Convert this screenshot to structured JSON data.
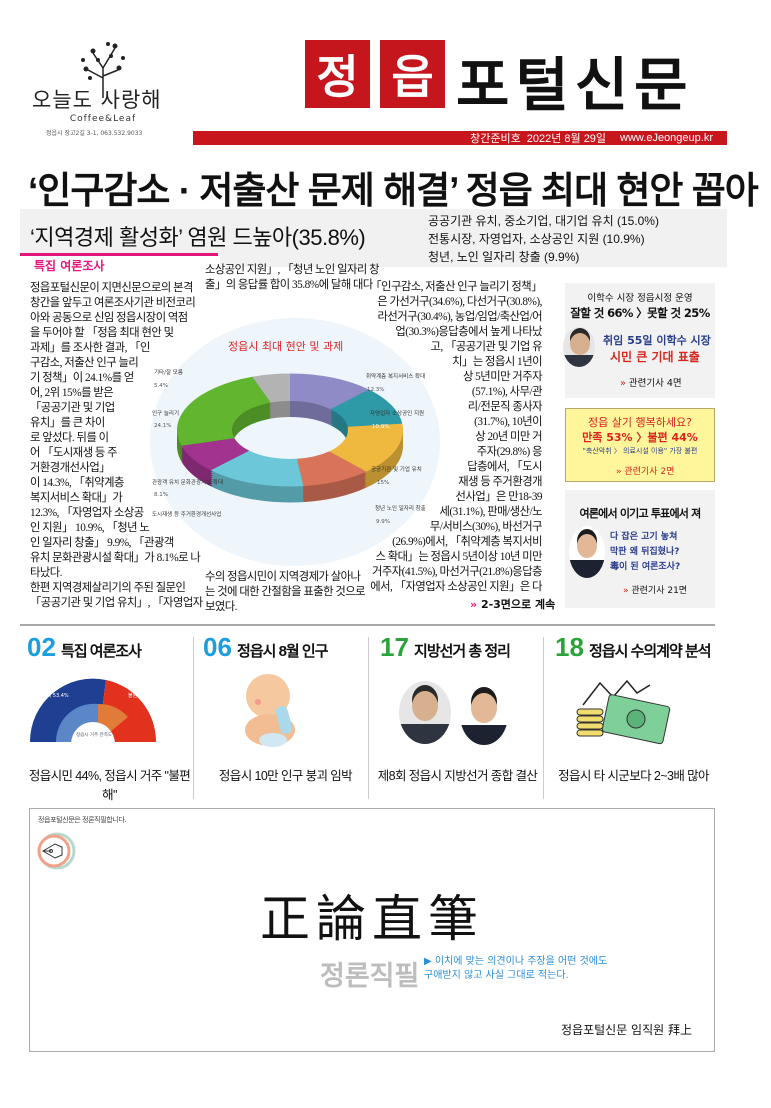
{
  "logo": {
    "name": "오늘도 사랑해",
    "sub": "Coffee&Leaf",
    "address": "정읍시 장고2길 3-1,  063.532.9033"
  },
  "masthead": {
    "red_chars": [
      "정",
      "읍"
    ],
    "title": "포털신문",
    "issue": "창간준비호",
    "date": "2022년 8월 29일",
    "url": "www.eJeongeup.kr"
  },
  "headline": "‘인구감소 · 저출산 문제 해결’ 정읍 최대 현안 꼽아",
  "subheadline": "‘지역경제 활성화’ 염원 드높아(35.8%)",
  "sub_points": [
    "공공기관 유치,  중소기업, 대기업 유치 (15.0%)",
    "전통시장, 자영업자, 소상공인 지원 (10.9%)",
    "청년, 노인 일자리 창출 (9.9%)"
  ],
  "section_label": "특집 여론조사",
  "article": {
    "col1": [
      "정읍포털신문이 지면신문으로의 본격",
      "창간을 앞두고 여론조사기관 비전코리",
      "아와 공동으로 신임 정읍시장이 역점",
      "을 두어야 할 「정읍 최대 현안 및",
      "과제」를 조사한 결과, 「인",
      "구감소, 저출산 인구 늘리",
      "기 정책」이 24.1%를 얻",
      "어, 2위 15%를 받은",
      "「공공기관 및 기업",
      "유치」를  큰 차이",
      "로 앞섰다. 뒤를 이",
      "어 「도시재생 등 주",
      "거환경개선사업」",
      "이 14.3%, 「취약계층",
      "복지서비스 확대」가",
      "12.3%, 「자영업자 소상공",
      "인 지원」 10.9%, 「청년 노",
      "인 일자리 창출」 9.9%, 「관광객",
      "유치 문화관광시설 확대」가 8.1%로 나",
      "타났다.",
      " 한편 지역경제살리기의 주된 질문인",
      "「공공기관 및 기업 유치」, 「자영업자"
    ],
    "col2_top": [
      "소상공인 지원」, 「청년 노인 일자리 창",
      "출」의 응답률 합이 35.8%에 달해 대다"
    ],
    "col2_bottom": [
      "수의 정읍시민이  지역경제가 살아나",
      "는 것에 대한 간절함을 표출한 것으로",
      "보였다."
    ],
    "col3": [
      "「인구감소, 저출산 인구 늘리기 정책」",
      "은 가선거구(34.6%), 다선거구(30.8%),",
      "라선거구(30.4%), 농업/임업/축산업/어",
      "업(30.3%)응답층에서 높게 나타났",
      "고, 「공공기관 및 기업 유",
      "치」는 정읍시 1년이",
      "상 5년미만 거주자",
      "(57.1%), 사무/관",
      "리/전문직 종사자",
      "(31.7%), 10년이",
      "상 20년 미만 거",
      "주자(29.8%) 응",
      "답층에서, 「도시",
      "재생 등 주거환경개",
      "선사업」은 만18-39",
      "세(31.1%), 판매/생산/노",
      "무/서비스(30%), 바선거구",
      "(26.9%)에서, 「취약계층 복지서비",
      "스 확대」는 정읍시 5년이상 10년 미만",
      "거주자(41.5%), 마선거구(21.8%)응답층",
      "에서, 「자영업자 소상공인 지원」은 다"
    ],
    "continue": "2-3면으로 계속"
  },
  "chart_data": {
    "type": "pie",
    "title": "정읍시 최대 현안 및 과제",
    "slices": [
      {
        "label": "취약계층 복지서비스 확대",
        "value": 12.3,
        "value_label": "12.3%",
        "color": "#8e8bc6"
      },
      {
        "label": "자영업자 소상공인 지원",
        "value": 10.9,
        "value_label": "10.9%",
        "color": "#2e9aa8"
      },
      {
        "label": "공공기관 및 기업 유치",
        "value": 15,
        "value_label": "15%",
        "color": "#efb83f"
      },
      {
        "label": "청년 노인 일자리 창출",
        "value": 9.9,
        "value_label": "9.9%",
        "color": "#d9735a"
      },
      {
        "label": "도시재생 등 주거환경개선사업",
        "value": 14.3,
        "value_label": "",
        "color": "#6cc7d8"
      },
      {
        "label": "관광객 유치 문화관광시설 확대",
        "value": 8.1,
        "value_label": "8.1%",
        "color": "#a2338f"
      },
      {
        "label": "인구 늘리기",
        "value": 24.1,
        "value_label": "24.1%",
        "color": "#62b52f"
      },
      {
        "label": "기타/잘 모름",
        "value": 5.4,
        "value_label": "5.4%",
        "color": "#b3b3b3"
      }
    ]
  },
  "sidebar": {
    "box1": {
      "kicker": "이학수 시장 정읍시정 운영",
      "result": "잘할 것 66% 〉못할 것  25%",
      "line1": "취임 55일 이학수 시장",
      "line2": "시민 큰 기대 표출",
      "ref": "관련기사 4면"
    },
    "box2": {
      "q": "정읍 살기 행복하세요?",
      "result": "만족 53% 〉불편 44%",
      "detail": "\"축산악취 〉 의료시설 이용\" 가장 불편",
      "ref": "관련기사 2면"
    },
    "box3": {
      "title": "여론에서 이기고 투표에서  져",
      "lines": [
        "다 잡은 고기 놓쳐",
        "막판 왜 뒤집혔나?",
        "毒이 된 여론조사?"
      ],
      "ref": "관련기사 21면"
    }
  },
  "sections": [
    {
      "num": "02",
      "title": "특집 여론조사",
      "caption": "정읍시민 44%, 정읍시 거주 \"불편해\"",
      "color": "#1a9ee0"
    },
    {
      "num": "06",
      "title": "정읍시 8월 인구",
      "caption": "정읍시 10만 인구 붕괴 임박",
      "color": "#1a9ee0"
    },
    {
      "num": "17",
      "title": "지방선거 총 정리",
      "caption": "제8회 정읍시 지방선거 종합 결산",
      "color": "#2aa43a"
    },
    {
      "num": "18",
      "title": "정읍시 수의계약 분석",
      "caption": "정읍시  타 시군보다  2~3배 많아",
      "color": "#2aa43a"
    }
  ],
  "mini_chart": {
    "left": "만족",
    "left_pct": "53.4%",
    "right": "불편",
    "right_pct": "44.2%",
    "center": "정읍시 거주 만족도"
  },
  "motto": {
    "note": "정읍포털신문은 정론직필합니다.",
    "hanja": "正論直筆",
    "korean": "정론직필",
    "desc1": "▶ 이치에 맞는 의견이나 주장을 어떤 것에도",
    "desc2": "구애받지 않고 사실 그대로 적는다.",
    "sign": "정읍포털신문 임직원 拜上"
  }
}
